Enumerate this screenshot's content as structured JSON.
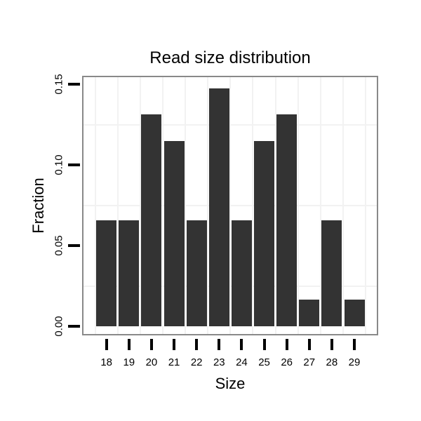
{
  "chart_data": {
    "type": "bar",
    "title": "Read size distribution",
    "xlabel": "Size",
    "ylabel": "Fraction",
    "categories": [
      "18",
      "19",
      "20",
      "21",
      "22",
      "23",
      "24",
      "25",
      "26",
      "27",
      "28",
      "29"
    ],
    "values": [
      0.0656,
      0.0656,
      0.1311,
      0.1148,
      0.0656,
      0.1475,
      0.0656,
      0.1148,
      0.1311,
      0.0164,
      0.0656,
      0.0164
    ],
    "ytick_labels": [
      "0.00",
      "0.05",
      "0.10",
      "0.15"
    ],
    "ytick_values": [
      0.0,
      0.05,
      0.1,
      0.15
    ],
    "ylim": [
      -0.0057,
      0.1552
    ],
    "yminor_values": [
      0.025,
      0.075,
      0.125
    ],
    "grid": "minor gridlines only, very light",
    "legend": "none",
    "colors": {
      "bar": "#333333",
      "panel_border": "#898989",
      "grid_minor": "#f2f2f2",
      "tick": "#000000",
      "text": "#000000",
      "background": "#ffffff"
    }
  }
}
